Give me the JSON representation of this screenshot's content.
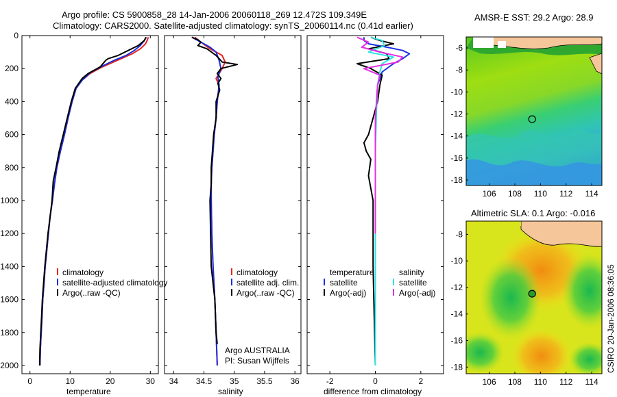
{
  "title_line1": "Argo profile: CS 5900858_28 14-Jan-2006 20060118_269 12.472S 109.349E",
  "title_line2": "Climatology: CARS2000. Satellite-adjusted climatology: synTS_20060114.nc (0.41d earlier)",
  "side_credit": "CSIRO 20-Jan-2006 08:36:05",
  "colors": {
    "red": "#e8231c",
    "blue": "#1a2fe0",
    "black": "#000000",
    "cyan": "#2ee5e5",
    "magenta": "#e52ee5"
  },
  "chart_data": [
    {
      "id": "temperature",
      "type": "line",
      "xlabel": "temperature",
      "xlim": [
        -2,
        32
      ],
      "ylim": [
        2050,
        0
      ],
      "xticks": [
        0,
        10,
        20,
        30
      ],
      "yticks": [
        0,
        200,
        400,
        600,
        800,
        1000,
        1200,
        1400,
        1600,
        1800,
        2000
      ],
      "legend": [
        "climatology",
        "satellite-adjusted climatology",
        "Argo(..raw -QC)"
      ],
      "series": [
        {
          "name": "climatology",
          "color": "red",
          "points": [
            [
              29.5,
              10
            ],
            [
              29.2,
              30
            ],
            [
              28.8,
              50
            ],
            [
              27.5,
              80
            ],
            [
              25.5,
              110
            ],
            [
              21.8,
              150
            ],
            [
              18,
              190
            ],
            [
              15,
              230
            ],
            [
              13,
              270
            ],
            [
              11.5,
              320
            ],
            [
              10.5,
              400
            ],
            [
              9.5,
              500
            ],
            [
              8.6,
              600
            ],
            [
              7.6,
              700
            ],
            [
              6.7,
              800
            ],
            [
              6.1,
              900
            ],
            [
              5.6,
              1000
            ],
            [
              5.0,
              1100
            ],
            [
              4.6,
              1200
            ],
            [
              4.2,
              1300
            ],
            [
              3.8,
              1400
            ],
            [
              3.5,
              1500
            ],
            [
              3.2,
              1600
            ],
            [
              3.0,
              1700
            ],
            [
              2.8,
              1800
            ],
            [
              2.6,
              1900
            ],
            [
              2.5,
              2000
            ]
          ]
        },
        {
          "name": "satellite-adjusted climatology",
          "color": "blue",
          "points": [
            [
              29.0,
              10
            ],
            [
              28.5,
              30
            ],
            [
              27.5,
              60
            ],
            [
              26,
              90
            ],
            [
              24,
              120
            ],
            [
              21,
              150
            ],
            [
              18,
              185
            ],
            [
              15,
              225
            ],
            [
              13,
              270
            ],
            [
              11.5,
              320
            ],
            [
              10.5,
              400
            ],
            [
              9.5,
              500
            ],
            [
              8.6,
              600
            ],
            [
              7.6,
              700
            ],
            [
              6.7,
              800
            ],
            [
              6.1,
              900
            ],
            [
              5.6,
              1000
            ],
            [
              5.0,
              1100
            ],
            [
              4.6,
              1200
            ],
            [
              4.2,
              1300
            ],
            [
              3.8,
              1400
            ],
            [
              3.5,
              1500
            ],
            [
              3.2,
              1600
            ],
            [
              3.0,
              1700
            ],
            [
              2.8,
              1800
            ],
            [
              2.6,
              1900
            ],
            [
              2.5,
              2000
            ]
          ]
        },
        {
          "name": "Argo(..raw -QC)",
          "color": "black",
          "points": [
            [
              28.9,
              10
            ],
            [
              28.5,
              30
            ],
            [
              27,
              60
            ],
            [
              24.5,
              90
            ],
            [
              22,
              120
            ],
            [
              19.5,
              140
            ],
            [
              18.9,
              150
            ],
            [
              17.5,
              190
            ],
            [
              14.5,
              230
            ],
            [
              13,
              260
            ],
            [
              11.3,
              320
            ],
            [
              10.3,
              400
            ],
            [
              9.3,
              500
            ],
            [
              8.3,
              600
            ],
            [
              7.3,
              700
            ],
            [
              6.5,
              800
            ],
            [
              5.8,
              880
            ],
            [
              5.5,
              1000
            ],
            [
              5.0,
              1100
            ],
            [
              4.5,
              1200
            ],
            [
              4.1,
              1300
            ],
            [
              3.7,
              1400
            ],
            [
              3.4,
              1500
            ],
            [
              3.1,
              1600
            ],
            [
              2.9,
              1700
            ],
            [
              2.7,
              1800
            ],
            [
              2.5,
              1900
            ],
            [
              2.4,
              2000
            ]
          ]
        }
      ]
    },
    {
      "id": "salinity",
      "type": "line",
      "xlabel": "salinity",
      "xlim": [
        33.85,
        36.1
      ],
      "ylim": [
        2050,
        0
      ],
      "xticks": [
        34,
        34.5,
        35,
        35.5,
        36
      ],
      "xticklabels": [
        "34",
        "34.5",
        "35",
        "35.5",
        "36"
      ],
      "legend": [
        "climatology",
        "satellite adj. clim.",
        "Argo(..raw -QC)"
      ],
      "annotations": [
        "Argo AUSTRALIA",
        "PI: Susan Wijffels"
      ],
      "series": [
        {
          "name": "climatology",
          "color": "red",
          "points": [
            [
              34.35,
              10
            ],
            [
              34.45,
              40
            ],
            [
              34.6,
              80
            ],
            [
              34.8,
              120
            ],
            [
              34.85,
              160
            ],
            [
              34.8,
              200
            ],
            [
              34.7,
              260
            ],
            [
              34.75,
              300
            ],
            [
              34.72,
              400
            ],
            [
              34.7,
              500
            ],
            [
              34.67,
              600
            ],
            [
              34.65,
              700
            ],
            [
              34.63,
              800
            ],
            [
              34.62,
              900
            ],
            [
              34.62,
              1000
            ],
            [
              34.63,
              1200
            ],
            [
              34.65,
              1400
            ],
            [
              34.68,
              1600
            ],
            [
              34.7,
              1800
            ],
            [
              34.72,
              2000
            ]
          ]
        },
        {
          "name": "satellite adj. clim.",
          "color": "blue",
          "points": [
            [
              34.3,
              10
            ],
            [
              34.45,
              40
            ],
            [
              34.6,
              70
            ],
            [
              34.7,
              100
            ],
            [
              34.75,
              150
            ],
            [
              34.78,
              200
            ],
            [
              34.73,
              250
            ],
            [
              34.75,
              300
            ],
            [
              34.72,
              400
            ],
            [
              34.7,
              500
            ],
            [
              34.67,
              600
            ],
            [
              34.65,
              700
            ],
            [
              34.63,
              800
            ],
            [
              34.62,
              900
            ],
            [
              34.62,
              1000
            ],
            [
              34.63,
              1200
            ],
            [
              34.65,
              1400
            ],
            [
              34.68,
              1600
            ],
            [
              34.7,
              1800
            ],
            [
              34.72,
              2000
            ]
          ]
        },
        {
          "name": "Argo(..raw -QC)",
          "color": "black",
          "points": [
            [
              34.3,
              10
            ],
            [
              34.4,
              25
            ],
            [
              34.45,
              40
            ],
            [
              34.4,
              60
            ],
            [
              34.55,
              80
            ],
            [
              34.7,
              120
            ],
            [
              34.8,
              160
            ],
            [
              35.05,
              175
            ],
            [
              34.78,
              200
            ],
            [
              34.72,
              230
            ],
            [
              34.78,
              260
            ],
            [
              34.73,
              290
            ],
            [
              34.76,
              330
            ],
            [
              34.7,
              400
            ],
            [
              34.7,
              500
            ],
            [
              34.66,
              600
            ],
            [
              34.64,
              700
            ],
            [
              34.62,
              800
            ],
            [
              34.62,
              900
            ],
            [
              34.6,
              1000
            ],
            [
              34.61,
              1200
            ],
            [
              34.62,
              1400
            ],
            [
              34.68,
              1600
            ],
            [
              34.7,
              1800
            ],
            [
              34.72,
              1870
            ]
          ]
        }
      ]
    },
    {
      "id": "difference",
      "type": "line",
      "xlabel": "difference from climatology",
      "xlim": [
        -3,
        3
      ],
      "ylim": [
        2050,
        0
      ],
      "xticks": [
        -2,
        0,
        2
      ],
      "legend_temperature": [
        "temperature",
        "satellite",
        "Argo(-adj)"
      ],
      "legend_salinity": [
        "salinity",
        "satellite",
        "Argo(-adj)"
      ],
      "series": [
        {
          "name": "satellite",
          "group": "temperature",
          "color": "blue",
          "points": [
            [
              -0.5,
              10
            ],
            [
              -0.5,
              30
            ],
            [
              -0.3,
              50
            ],
            [
              0.5,
              70
            ],
            [
              1.2,
              90
            ],
            [
              1.5,
              110
            ],
            [
              1.2,
              140
            ],
            [
              0.8,
              170
            ],
            [
              0.3,
              220
            ],
            [
              0.1,
              300
            ],
            [
              0.05,
              400
            ],
            [
              0,
              600
            ],
            [
              0,
              1000
            ],
            [
              0,
              1400
            ],
            [
              0,
              2000
            ]
          ]
        },
        {
          "name": "Argo(-adj)",
          "group": "temperature",
          "color": "black",
          "points": [
            [
              -0.2,
              10
            ],
            [
              0.2,
              30
            ],
            [
              0.8,
              50
            ],
            [
              -0.3,
              80
            ],
            [
              0.5,
              110
            ],
            [
              0.6,
              140
            ],
            [
              -0.8,
              170
            ],
            [
              -0.2,
              200
            ],
            [
              0.3,
              240
            ],
            [
              0.2,
              300
            ],
            [
              0.1,
              400
            ],
            [
              -0.1,
              500
            ],
            [
              -0.3,
              600
            ],
            [
              -0.5,
              650
            ],
            [
              -0.4,
              700
            ],
            [
              -0.2,
              750
            ],
            [
              -0.3,
              850
            ],
            [
              -0.1,
              1000
            ],
            [
              -0.1,
              1200
            ],
            [
              -0.1,
              1400
            ],
            [
              0,
              2000
            ]
          ]
        },
        {
          "name": "satellite",
          "group": "salinity",
          "color": "cyan",
          "points": [
            [
              -0.2,
              10
            ],
            [
              0.3,
              30
            ],
            [
              0.4,
              60
            ],
            [
              -0.3,
              100
            ],
            [
              0.8,
              130
            ],
            [
              0.3,
              170
            ],
            [
              0.2,
              220
            ],
            [
              0.1,
              300
            ],
            [
              0.05,
              450
            ],
            [
              0,
              700
            ],
            [
              0,
              1000
            ],
            [
              0,
              1500
            ],
            [
              0,
              2000
            ]
          ]
        },
        {
          "name": "Argo(-adj)",
          "group": "salinity",
          "color": "magenta",
          "points": [
            [
              -0.8,
              10
            ],
            [
              -0.3,
              40
            ],
            [
              -0.6,
              70
            ],
            [
              0.2,
              100
            ],
            [
              1.2,
              130
            ],
            [
              1.0,
              160
            ],
            [
              -0.5,
              200
            ],
            [
              0.2,
              240
            ],
            [
              0.1,
              300
            ],
            [
              0.05,
              400
            ],
            [
              0,
              500
            ],
            [
              0,
              700
            ],
            [
              0,
              900
            ],
            [
              0,
              1200
            ]
          ]
        }
      ]
    },
    {
      "id": "sst-map",
      "type": "heatmap",
      "title": "AMSR-E SST: 29.2 Argo: 28.9",
      "xlim": [
        104.2,
        114.8
      ],
      "ylim": [
        -18.5,
        -5
      ],
      "xticks": [
        106,
        108,
        110,
        112,
        114
      ],
      "yticks": [
        -6,
        -8,
        -10,
        -12,
        -14,
        -16,
        -18
      ],
      "marker": [
        109.349,
        -12.472
      ]
    },
    {
      "id": "sla-map",
      "type": "heatmap",
      "title": "Altimetric SLA: 0.1 Argo: -0.016",
      "xlim": [
        104.2,
        114.8
      ],
      "ylim": [
        -18.5,
        -7
      ],
      "xticks": [
        106,
        108,
        110,
        112,
        114
      ],
      "yticks": [
        -8,
        -10,
        -12,
        -14,
        -16,
        -18
      ],
      "marker": [
        109.349,
        -12.472
      ]
    }
  ]
}
